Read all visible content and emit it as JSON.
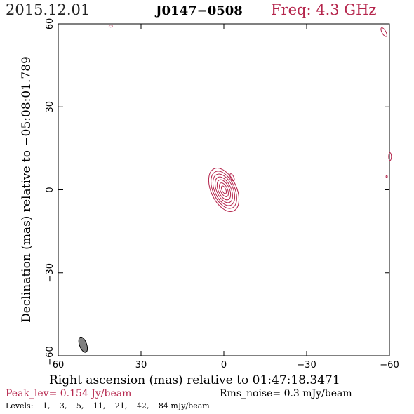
{
  "header": {
    "date": "2015.12.01",
    "source": "J0147−0508",
    "freq": "Freq: 4.3 GHz"
  },
  "colors": {
    "contour": "#b5254c",
    "beam": "#808080",
    "frame": "#000000"
  },
  "chart_data": {
    "type": "contour",
    "xlabel": "Right ascension (mas) relative to 01:47:18.3471",
    "ylabel": "Declination (mas) relative to −05:08:01.789",
    "xlim": [
      60,
      -60
    ],
    "ylim": [
      -60,
      60
    ],
    "x_ticks": [
      {
        "value": 60,
        "label": "60"
      },
      {
        "value": 30,
        "label": "30"
      },
      {
        "value": 0,
        "label": "0"
      },
      {
        "value": -30,
        "label": "−30"
      },
      {
        "value": -60,
        "label": "−60"
      }
    ],
    "y_ticks": [
      {
        "value": -60,
        "label": "−60"
      },
      {
        "value": -30,
        "label": "−30"
      },
      {
        "value": 0,
        "label": "0"
      },
      {
        "value": 30,
        "label": "30"
      },
      {
        "value": 60,
        "label": "60"
      }
    ],
    "core": {
      "x": 0,
      "y": 0,
      "angle_deg": 25,
      "ellipses": [
        [
          4.6,
          8.4
        ],
        [
          3.9,
          7.2
        ],
        [
          3.3,
          6.1
        ],
        [
          2.6,
          5.0
        ],
        [
          2.0,
          3.9
        ],
        [
          1.3,
          2.7
        ],
        [
          0.7,
          1.5
        ]
      ]
    },
    "beam": {
      "x": 51,
      "y": -56,
      "a": 1.3,
      "b": 2.9,
      "angle_deg": 20
    },
    "extra_contours": [
      {
        "x": 41,
        "y": 59.2,
        "a": 0.6,
        "b": 0.4,
        "angle_deg": 0
      },
      {
        "x": -58,
        "y": 57,
        "a": 0.7,
        "b": 1.8,
        "angle_deg": 30
      },
      {
        "x": -3,
        "y": 4.5,
        "a": 0.6,
        "b": 1.4,
        "angle_deg": 25
      },
      {
        "x": -60.2,
        "y": 12,
        "a": 0.5,
        "b": 1.4,
        "angle_deg": 0
      },
      {
        "x": -59,
        "y": 4.8,
        "a": 0.25,
        "b": 0.3,
        "angle_deg": 0
      }
    ]
  },
  "footer": {
    "peak": "Peak_lev=  0.154 Jy/beam",
    "rms": "Rms_noise=  0.3 mJy/beam",
    "levels_label": "Levels:",
    "levels": [
      "1,",
      "3,",
      "5,",
      "11,",
      "21,",
      "42,",
      "84 mJy/beam"
    ]
  }
}
